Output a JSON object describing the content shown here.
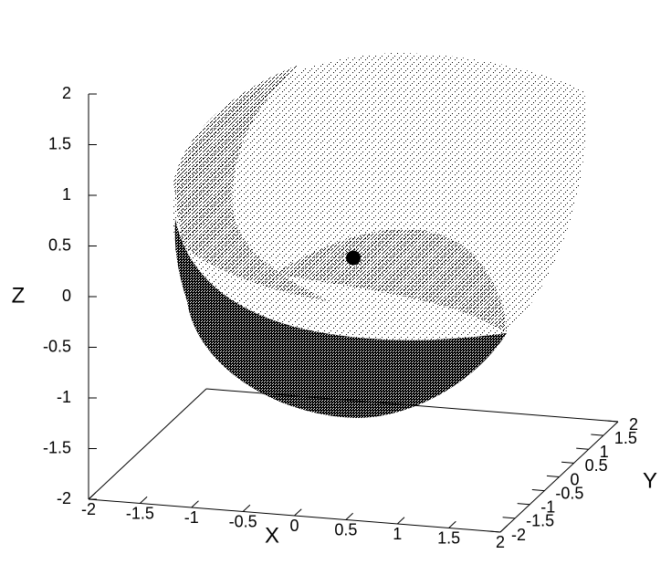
{
  "chart_data": {
    "type": "scatter3d",
    "x_label": "X",
    "y_label": "Y",
    "z_label": "Z",
    "xlim": [
      -2,
      2
    ],
    "ylim": [
      -2,
      2
    ],
    "zlim": [
      -2,
      2
    ],
    "xticks": [
      -2,
      -1.5,
      -1,
      -0.5,
      0,
      0.5,
      1,
      1.5,
      2
    ],
    "yticks": [
      -2,
      -1.5,
      -1,
      -0.5,
      0,
      0.5,
      1,
      1.5,
      2
    ],
    "zticks": [
      -2,
      -1.5,
      -1,
      -0.5,
      0,
      0.5,
      1,
      1.5,
      2
    ],
    "points": {
      "x": [
        0
      ],
      "y": [
        0
      ],
      "z": [
        0
      ]
    },
    "color": "#000000"
  }
}
